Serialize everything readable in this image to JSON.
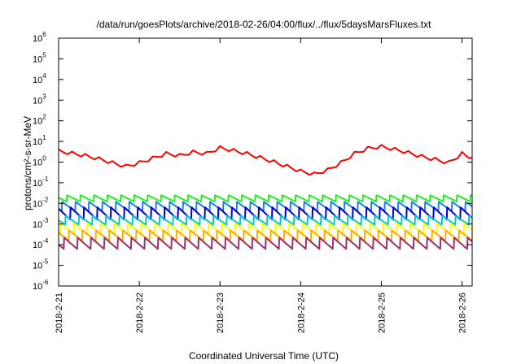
{
  "chart_data": {
    "type": "line",
    "title": "/data/run/goesPlots/archive/2018-02-26/04:00/flux/../flux/5daysMarsFluxes.txt",
    "xlabel": "Coordinated Universal Time (UTC)",
    "ylabel": "protons/cm²-s-sr-MeV",
    "y_scale": "log",
    "ylim": [
      1e-06,
      1000000.0
    ],
    "x_range": [
      "2018-02-21 00:00",
      "2018-02-26 03:00"
    ],
    "x_ticks": [
      "2018-2-21",
      "2018-2-22",
      "2018-2-23",
      "2018-2-24",
      "2018-2-25",
      "2018-2-26"
    ],
    "y_tick_base": "10",
    "y_tick_exponents": [
      "-6",
      "-5",
      "-4",
      "-3",
      "-2",
      "-1",
      "0",
      "1",
      "2",
      "3",
      "4",
      "5",
      "6"
    ],
    "grid": false,
    "legend": "none",
    "sawtooth_period_hours": 4,
    "series": [
      {
        "color": "#ff0000",
        "pattern": "sawtooth-decaying",
        "points": [
          [
            "2018-02-21 00:00",
            3.3
          ],
          [
            "2018-02-21 04:00",
            2.6
          ],
          [
            "2018-02-21 08:00",
            2.0
          ],
          [
            "2018-02-21 12:00",
            1.4
          ],
          [
            "2018-02-21 16:00",
            0.9
          ],
          [
            "2018-02-21 20:00",
            0.6
          ],
          [
            "2018-02-22 00:00",
            0.9
          ],
          [
            "2018-02-22 04:00",
            1.5
          ],
          [
            "2018-02-22 08:00",
            2.5
          ],
          [
            "2018-02-22 12:00",
            2.0
          ],
          [
            "2018-02-22 16:00",
            3.0
          ],
          [
            "2018-02-22 20:00",
            2.5
          ],
          [
            "2018-02-23 00:00",
            4.8
          ],
          [
            "2018-02-23 04:00",
            3.5
          ],
          [
            "2018-02-23 08:00",
            2.5
          ],
          [
            "2018-02-23 12:00",
            1.6
          ],
          [
            "2018-02-23 16:00",
            1.0
          ],
          [
            "2018-02-23 20:00",
            0.6
          ],
          [
            "2018-02-24 00:00",
            0.35
          ],
          [
            "2018-02-24 04:00",
            0.25
          ],
          [
            "2018-02-24 08:00",
            0.4
          ],
          [
            "2018-02-24 12:00",
            0.9
          ],
          [
            "2018-02-24 16:00",
            2.5
          ],
          [
            "2018-02-24 20:00",
            4.5
          ],
          [
            "2018-02-25 00:00",
            5.5
          ],
          [
            "2018-02-25 04:00",
            4.0
          ],
          [
            "2018-02-25 08:00",
            2.8
          ],
          [
            "2018-02-25 12:00",
            1.8
          ],
          [
            "2018-02-25 16:00",
            1.3
          ],
          [
            "2018-02-25 20:00",
            0.9
          ],
          [
            "2018-02-26 00:00",
            2.5
          ],
          [
            "2018-02-26 03:00",
            1.6
          ]
        ]
      },
      {
        "color": "#22ee22",
        "pattern": "sawtooth",
        "peak": 0.025,
        "trough": 0.012
      },
      {
        "color": "#1e7fe6",
        "pattern": "sawtooth",
        "peak": 0.012,
        "trough": 0.004
      },
      {
        "color": "#0000cc",
        "pattern": "sawtooth",
        "peak": 0.0065,
        "trough": 0.0016
      },
      {
        "color": "#00cccc",
        "pattern": "sawtooth",
        "peak": 0.0025,
        "trough": 0.0009
      },
      {
        "color": "#ffff00",
        "pattern": "sawtooth",
        "peak": 0.0011,
        "trough": 0.0003
      },
      {
        "color": "#ffaa00",
        "pattern": "sawtooth",
        "peak": 0.0005,
        "trough": 0.00015
      },
      {
        "color": "#993366",
        "pattern": "sawtooth",
        "peak": 0.00022,
        "trough": 6e-05
      }
    ]
  }
}
